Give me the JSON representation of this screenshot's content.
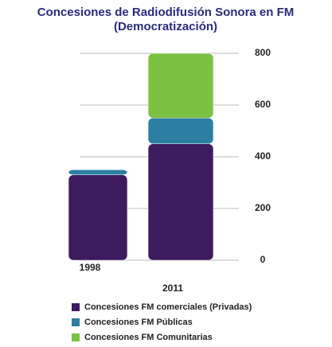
{
  "chart_data": {
    "type": "bar",
    "stacked": true,
    "title": "Concesiones de Radiodifusión Sonora en FM",
    "subtitle": "(Democratización)",
    "categories": [
      "1998",
      "2011"
    ],
    "series": [
      {
        "name": "Concesiones FM comerciales (Privadas)",
        "color": "#3f1a5f",
        "values": [
          330,
          450
        ]
      },
      {
        "name": "Concesiones FM Públicas",
        "color": "#2c7fa1",
        "values": [
          20,
          100
        ]
      },
      {
        "name": "Concesiones FM Comunitarias",
        "color": "#7cc242",
        "values": [
          0,
          250
        ]
      }
    ],
    "ylim": [
      0,
      800
    ],
    "yticks": [
      0,
      200,
      400,
      600,
      800
    ],
    "grid": true
  }
}
